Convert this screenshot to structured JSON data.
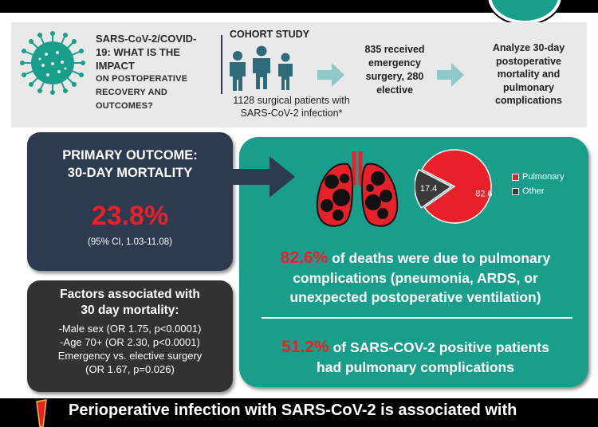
{
  "header": {
    "question_line1": "SARS-CoV-2/COVID-",
    "question_line2": "19: WHAT IS THE IMPACT",
    "question_line3": "ON POSTOPERATIVE",
    "question_line4": "RECOVERY AND",
    "question_line5": "OUTCOMES?"
  },
  "cohort": {
    "title": "COHORT STUDY",
    "text_line1": "1128 surgical patients with",
    "text_line2": "SARS-CoV-2 infection*"
  },
  "emergency": {
    "line1": "835 received",
    "line2": "emergency",
    "line3": "surgery, 280",
    "line4": "elective"
  },
  "analyze": {
    "line1": "Analyze 30-day",
    "line2": "postoperative",
    "line3": "mortality and",
    "line4": "pulmonary",
    "line5": "complications"
  },
  "primary": {
    "title_line1": "PRIMARY OUTCOME:",
    "title_line2": "30-DAY MORTALITY",
    "value": "23.8%",
    "ci": "(95% CI, 1.03-11.08)"
  },
  "factors": {
    "title_line1": "Factors associated with",
    "title_line2": "30 day mortality:",
    "items": [
      "-Male sex (OR 1.75, p<0.0001)",
      "-Age 70+ (OR 2.30, p<0.0001)",
      "Emergency vs. elective surgery",
      "(OR 1.67, p=0.026)"
    ]
  },
  "deaths": {
    "pct": "82.6%",
    "text_line1": "of deaths were due to pulmonary",
    "text_line2": "complications (pneumonia, ARDS, or",
    "text_line3": "unexpected postoperative ventilation)"
  },
  "pulmonary": {
    "pct": "51.2%",
    "text_line1": "of SARS-COV-2 positive patients",
    "text_line2": "had pulmonary complications"
  },
  "pie_chart": {
    "slices": [
      {
        "label": "Pulmonary",
        "value": 82.6,
        "display": "82.6",
        "color": "#e8202a"
      },
      {
        "label": "Other",
        "value": 17.4,
        "display": "17.4",
        "color": "#3a3a3a"
      }
    ]
  },
  "footer": {
    "text": "Perioperative infection with SARS-CoV-2 is associated with"
  },
  "colors": {
    "teal": "#1a9e8c",
    "navy": "#2d3b50",
    "red": "#e8202a",
    "dark": "#323232"
  }
}
